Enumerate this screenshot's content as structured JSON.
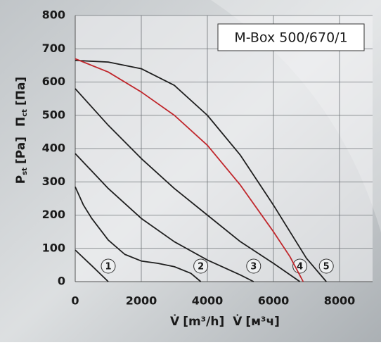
{
  "chart_data": {
    "type": "line",
    "title": "M-Box 500/670/1",
    "y_label": {
      "symbol": "P",
      "subscript": "st",
      "unit": "[Pa]",
      "symbol_ru": "П",
      "subscript_ru": "ct",
      "unit_ru": "[Па]"
    },
    "x_label": {
      "symbol": "V̇",
      "unit": "[m³/h]",
      "unit_ru": "[м³ч]"
    },
    "xlim": [
      0,
      9000
    ],
    "ylim": [
      0,
      800
    ],
    "xticks": [
      0,
      2000,
      4000,
      6000,
      8000
    ],
    "yticks": [
      0,
      100,
      200,
      300,
      400,
      500,
      600,
      700,
      800
    ],
    "grid": true,
    "series": [
      {
        "name": "1",
        "color": "#1e1e1e",
        "x": [
          0,
          500,
          1000
        ],
        "values": [
          95,
          48,
          0
        ]
      },
      {
        "name": "2",
        "color": "#1e1e1e",
        "x": [
          0,
          250,
          500,
          1000,
          1500,
          2000,
          2500,
          3000,
          3500,
          3800
        ],
        "values": [
          285,
          230,
          190,
          125,
          82,
          62,
          55,
          45,
          25,
          0
        ]
      },
      {
        "name": "3",
        "color": "#1e1e1e",
        "x": [
          0,
          1000,
          2000,
          3000,
          4000,
          5000,
          5400
        ],
        "values": [
          385,
          280,
          190,
          120,
          65,
          20,
          0
        ]
      },
      {
        "name": "4",
        "color": "#1e1e1e",
        "x": [
          0,
          1000,
          2000,
          3000,
          4000,
          5000,
          6000,
          6800
        ],
        "values": [
          580,
          470,
          370,
          280,
          200,
          120,
          55,
          0
        ]
      },
      {
        "name": "5",
        "color": "#1e1e1e",
        "x": [
          0,
          1000,
          2000,
          3000,
          4000,
          5000,
          6000,
          7000,
          7600
        ],
        "values": [
          665,
          660,
          640,
          590,
          500,
          380,
          230,
          70,
          0
        ]
      },
      {
        "color": "#c0262b",
        "x": [
          0,
          1000,
          2000,
          3000,
          4000,
          5000,
          6000,
          6500,
          6900
        ],
        "values": [
          670,
          630,
          570,
          500,
          410,
          290,
          150,
          75,
          0
        ]
      }
    ]
  }
}
